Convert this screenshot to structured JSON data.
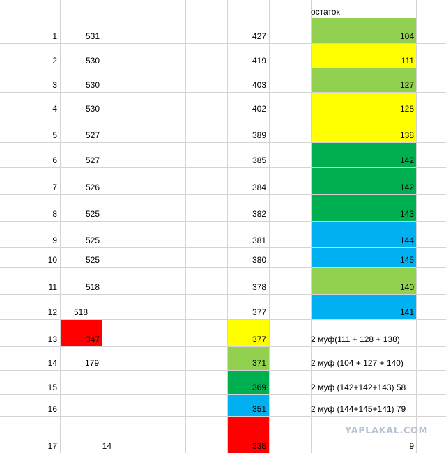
{
  "header": {
    "ostatok": "остаток"
  },
  "rows": [
    {
      "idx": "1",
      "b": "531",
      "c": "",
      "f": "427",
      "g": "104",
      "g_color": "#92d050"
    },
    {
      "idx": "2",
      "b": "530",
      "c": "",
      "f": "419",
      "g": "111",
      "g_color": "#ffff00"
    },
    {
      "idx": "3",
      "b": "530",
      "c": "",
      "f": "403",
      "g": "127",
      "g_color": "#92d050"
    },
    {
      "idx": "4",
      "b": "530",
      "c": "",
      "f": "402",
      "g": "128",
      "g_color": "#ffff00"
    },
    {
      "idx": "5",
      "b": "527",
      "c": "",
      "f": "389",
      "g": "138",
      "g_color": "#ffff00"
    },
    {
      "idx": "6",
      "b": "527",
      "c": "",
      "f": "385",
      "g": "142",
      "g_color": "#00b050"
    },
    {
      "idx": "7",
      "b": "526",
      "c": "",
      "f": "384",
      "g": "142",
      "g_color": "#00b050"
    },
    {
      "idx": "8",
      "b": "525",
      "c": "",
      "f": "382",
      "g": "143",
      "g_color": "#00b050"
    },
    {
      "idx": "9",
      "b": "525",
      "c": "",
      "f": "381",
      "g": "144",
      "g_color": "#00b0f0"
    },
    {
      "idx": "10",
      "b": "525",
      "c": "",
      "f": "380",
      "g": "145",
      "g_color": "#00b0f0"
    },
    {
      "idx": "11",
      "b": "518",
      "c": "",
      "f": "378",
      "g": "140",
      "g_color": "#92d050"
    },
    {
      "idx": "12",
      "b": "518",
      "c": "",
      "f": "377",
      "g": "141",
      "g_color": "#00b0f0"
    },
    {
      "idx": "13",
      "b": "347",
      "c": "",
      "f": "377",
      "g": "2 муф(111 + 128 + 138)",
      "b_color": "#ff0000",
      "f_color": "#ffff00"
    },
    {
      "idx": "14",
      "b": "179",
      "c": "",
      "f": "371",
      "g": "2 муф (104 + 127 + 140)",
      "f_color": "#92d050"
    },
    {
      "idx": "15",
      "b": "",
      "c": "",
      "f": "369",
      "g": "2 муф (142+142+143) 58",
      "f_color": "#00b050"
    },
    {
      "idx": "16",
      "b": "",
      "c": "",
      "f": "351",
      "g": "2 муф (144+145+141) 79",
      "f_color": "#00b0f0"
    },
    {
      "idx": "17",
      "b": "",
      "c": "14",
      "f": "338",
      "g": "9",
      "f_color": "#ff0000"
    }
  ],
  "watermark": "YAPLAKAL.COM"
}
